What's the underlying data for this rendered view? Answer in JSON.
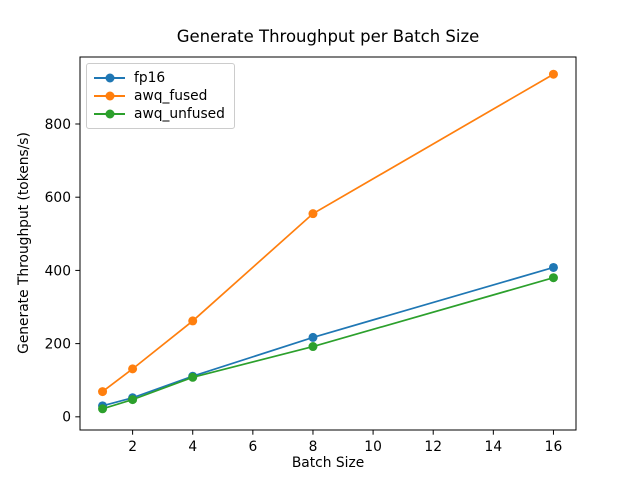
{
  "chart_data": {
    "type": "line",
    "title": "Generate Throughput per Batch Size",
    "xlabel": "Batch Size",
    "ylabel": "Generate Throughput (tokens/s)",
    "x": [
      1,
      2,
      4,
      8,
      16
    ],
    "series": [
      {
        "name": "fp16",
        "color": "#1f77b4",
        "values": [
          30,
          52,
          111,
          217,
          408
        ]
      },
      {
        "name": "awq_fused",
        "color": "#ff7f0e",
        "values": [
          69,
          131,
          262,
          555,
          936
        ]
      },
      {
        "name": "awq_unfused",
        "color": "#2ca02c",
        "values": [
          22,
          47,
          108,
          192,
          380
        ]
      }
    ],
    "xticks": [
      2,
      4,
      6,
      8,
      10,
      12,
      14,
      16
    ],
    "yticks": [
      0,
      200,
      400,
      600,
      800
    ],
    "xlim": [
      0.25,
      16.75
    ],
    "ylim": [
      -36,
      983
    ],
    "grid": false,
    "legend_position": "upper-left",
    "marker": "o",
    "background": "#ffffff"
  }
}
